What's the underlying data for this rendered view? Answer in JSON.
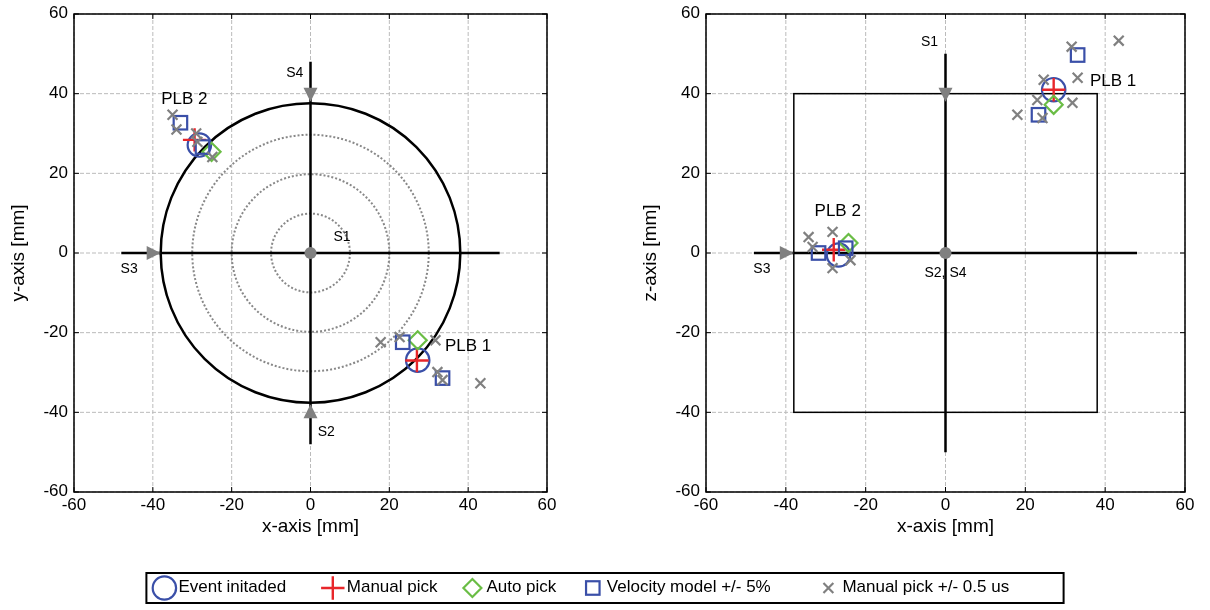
{
  "chart_data": [
    {
      "type": "scatter",
      "xlabel": "x-axis [mm]",
      "ylabel": "y-axis [mm]",
      "xlim": [
        -60,
        60
      ],
      "ylim": [
        -60,
        60
      ],
      "xticks": [
        -60,
        -40,
        -20,
        0,
        20,
        40,
        60
      ],
      "yticks": [
        -60,
        -40,
        -20,
        0,
        20,
        40,
        60
      ],
      "grid": true,
      "legend": "bottom",
      "annotations": [
        "PLB 2",
        "PLB 1",
        "S1",
        "S2",
        "S3",
        "S4"
      ],
      "series": [
        {
          "name": "Event initaded",
          "color": "#3a4fa8",
          "marker": "circle",
          "x": [
            -28.2,
            27.2
          ],
          "values": [
            27.1,
            -26.9
          ]
        },
        {
          "name": "Manual pick",
          "color": "#e8262a",
          "marker": "cross",
          "x": [
            -29.4,
            27
          ],
          "values": [
            28.4,
            -27
          ]
        },
        {
          "name": "Auto pick",
          "color": "#6abd45",
          "marker": "diamond",
          "x": [
            -25.1,
            27.2
          ],
          "values": [
            25.4,
            -21.9
          ]
        },
        {
          "name": "Velocity model +/- 5%",
          "color": "#3a4fa8",
          "marker": "square",
          "x": [
            -33,
            -27.4,
            23.4,
            33.5
          ],
          "values": [
            32.7,
            26.6,
            -22.4,
            -31.4
          ]
        },
        {
          "name": "Manual pick +/- 0.5 us",
          "color": "#808080",
          "marker": "x",
          "x": [
            -35,
            -34,
            -29,
            -28.7,
            -24.9,
            17.8,
            22.6,
            31.7,
            32.2,
            33.5,
            43.1
          ],
          "values": [
            34.7,
            31,
            30,
            27.9,
            24.1,
            -22.4,
            -21.1,
            -21.9,
            -29.9,
            -31.9,
            -32.7
          ]
        }
      ]
    },
    {
      "type": "scatter",
      "xlabel": "x-axis [mm]",
      "ylabel": "z-axis [mm]",
      "xlim": [
        -60,
        60
      ],
      "ylim": [
        -60,
        60
      ],
      "xticks": [
        -60,
        -40,
        -20,
        0,
        20,
        40,
        60
      ],
      "yticks": [
        -60,
        -40,
        -20,
        0,
        20,
        40,
        60
      ],
      "grid": true,
      "annotations": [
        "PLB 2",
        "PLB 1",
        "S1",
        "S2, S4",
        "S3"
      ],
      "series": [
        {
          "color": "#3a4fa8",
          "marker": "circle",
          "x": [
            -26.8,
            27.1
          ],
          "values": [
            -0.5,
            41
          ]
        },
        {
          "color": "#e8262a",
          "marker": "cross",
          "x": [
            -28,
            27.1
          ],
          "values": [
            0.8,
            41
          ]
        },
        {
          "color": "#6abd45",
          "marker": "diamond",
          "x": [
            -24.3,
            27.1
          ],
          "values": [
            2.5,
            37.2
          ]
        },
        {
          "color": "#3a4fa8",
          "marker": "square",
          "x": [
            -31.8,
            -25,
            33.1,
            23.3
          ],
          "values": [
            0,
            1.2,
            49.7,
            34.7
          ]
        },
        {
          "color": "#808080",
          "marker": "x",
          "x": [
            -34.3,
            -28.3,
            -33.3,
            -23.8,
            -28.3,
            43.4,
            31.6,
            33.1,
            24.6,
            23,
            31.8,
            18,
            24.3
          ],
          "values": [
            4,
            5.3,
            1.5,
            -1.8,
            -3.8,
            53.3,
            51.8,
            44,
            43.5,
            38.4,
            37.7,
            34.7,
            33.9
          ]
        }
      ]
    }
  ]
}
